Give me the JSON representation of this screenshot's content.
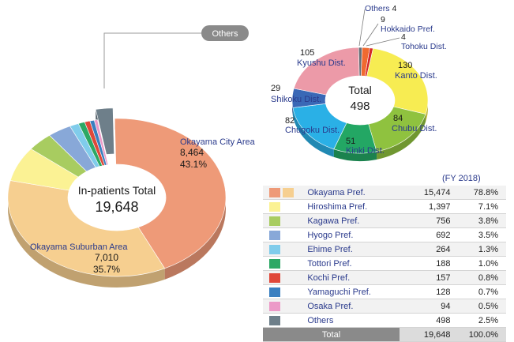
{
  "chart_data": [
    {
      "type": "pie",
      "title": "In-patients Total",
      "total": "19,648",
      "slices": [
        {
          "name": "Okayama City Area",
          "value": 8464,
          "value_label": "8,464",
          "pct_label": "43.1%",
          "color": "#ee9a78"
        },
        {
          "name": "Okayama Suburban Area",
          "value": 7010,
          "value_label": "7,010",
          "pct_label": "35.7%",
          "color": "#f6cf90"
        },
        {
          "name": "Hiroshima Pref.",
          "value": 1397,
          "color": "#fbf294"
        },
        {
          "name": "Kagawa Pref.",
          "value": 756,
          "color": "#a8cc60"
        },
        {
          "name": "Hyogo Pref.",
          "value": 692,
          "color": "#88a8d8"
        },
        {
          "name": "Ehime Pref.",
          "value": 264,
          "color": "#80cceb"
        },
        {
          "name": "Tottori Pref.",
          "value": 188,
          "color": "#2ca865"
        },
        {
          "name": "Kochi Pref.",
          "value": 157,
          "color": "#e0483a"
        },
        {
          "name": "Yamaguchi Pref.",
          "value": 128,
          "color": "#3a7fc0"
        },
        {
          "name": "Osaka Pref.",
          "value": 94,
          "color": "#ec9ac8"
        },
        {
          "name": "Others",
          "value": 498,
          "color": "#6e7f8a"
        }
      ],
      "callout": "Others"
    },
    {
      "type": "pie",
      "title": "Total",
      "total": "498",
      "slices": [
        {
          "name": "Hokkaido Pref.",
          "value": 9,
          "color": "#f06a30"
        },
        {
          "name": "Tohoku Dist.",
          "value": 4,
          "color": "#d42828"
        },
        {
          "name": "Kanto Dist.",
          "value": 130,
          "color": "#f7ec52"
        },
        {
          "name": "Chubu Dist.",
          "value": 84,
          "color": "#8fc23f"
        },
        {
          "name": "Kinki Dist.",
          "value": 51,
          "color": "#23a764"
        },
        {
          "name": "Chugoku Dist.",
          "value": 82,
          "color": "#2ab0e6"
        },
        {
          "name": "Shikoku Dist.",
          "value": 29,
          "color": "#3a68b6"
        },
        {
          "name": "Kyushu Dist.",
          "value": 105,
          "color": "#ec9aa8"
        },
        {
          "name": "Others",
          "value": 4,
          "color": "#666e76"
        }
      ]
    }
  ],
  "table": {
    "caption": "(FY 2018)",
    "rows": [
      {
        "name": "Okayama Pref.",
        "count": "15,474",
        "pct": "78.8%",
        "colors": [
          "#ee9a78",
          "#f6cf90"
        ]
      },
      {
        "name": "Hiroshima Pref.",
        "count": "1,397",
        "pct": "7.1%",
        "colors": [
          "#fbf294"
        ]
      },
      {
        "name": "Kagawa Pref.",
        "count": "756",
        "pct": "3.8%",
        "colors": [
          "#a8cc60"
        ]
      },
      {
        "name": "Hyogo Pref.",
        "count": "692",
        "pct": "3.5%",
        "colors": [
          "#88a8d8"
        ]
      },
      {
        "name": "Ehime Pref.",
        "count": "264",
        "pct": "1.3%",
        "colors": [
          "#80cceb"
        ]
      },
      {
        "name": "Tottori Pref.",
        "count": "188",
        "pct": "1.0%",
        "colors": [
          "#2ca865"
        ]
      },
      {
        "name": "Kochi Pref.",
        "count": "157",
        "pct": "0.8%",
        "colors": [
          "#e0483a"
        ]
      },
      {
        "name": "Yamaguchi Pref.",
        "count": "128",
        "pct": "0.7%",
        "colors": [
          "#3a7fc0"
        ]
      },
      {
        "name": "Osaka Pref.",
        "count": "94",
        "pct": "0.5%",
        "colors": [
          "#ec9ac8"
        ]
      },
      {
        "name": "Others",
        "count": "498",
        "pct": "2.5%",
        "colors": [
          "#6e7f8a"
        ]
      }
    ],
    "total": {
      "name": "Total",
      "count": "19,648",
      "pct": "100.0%"
    }
  }
}
